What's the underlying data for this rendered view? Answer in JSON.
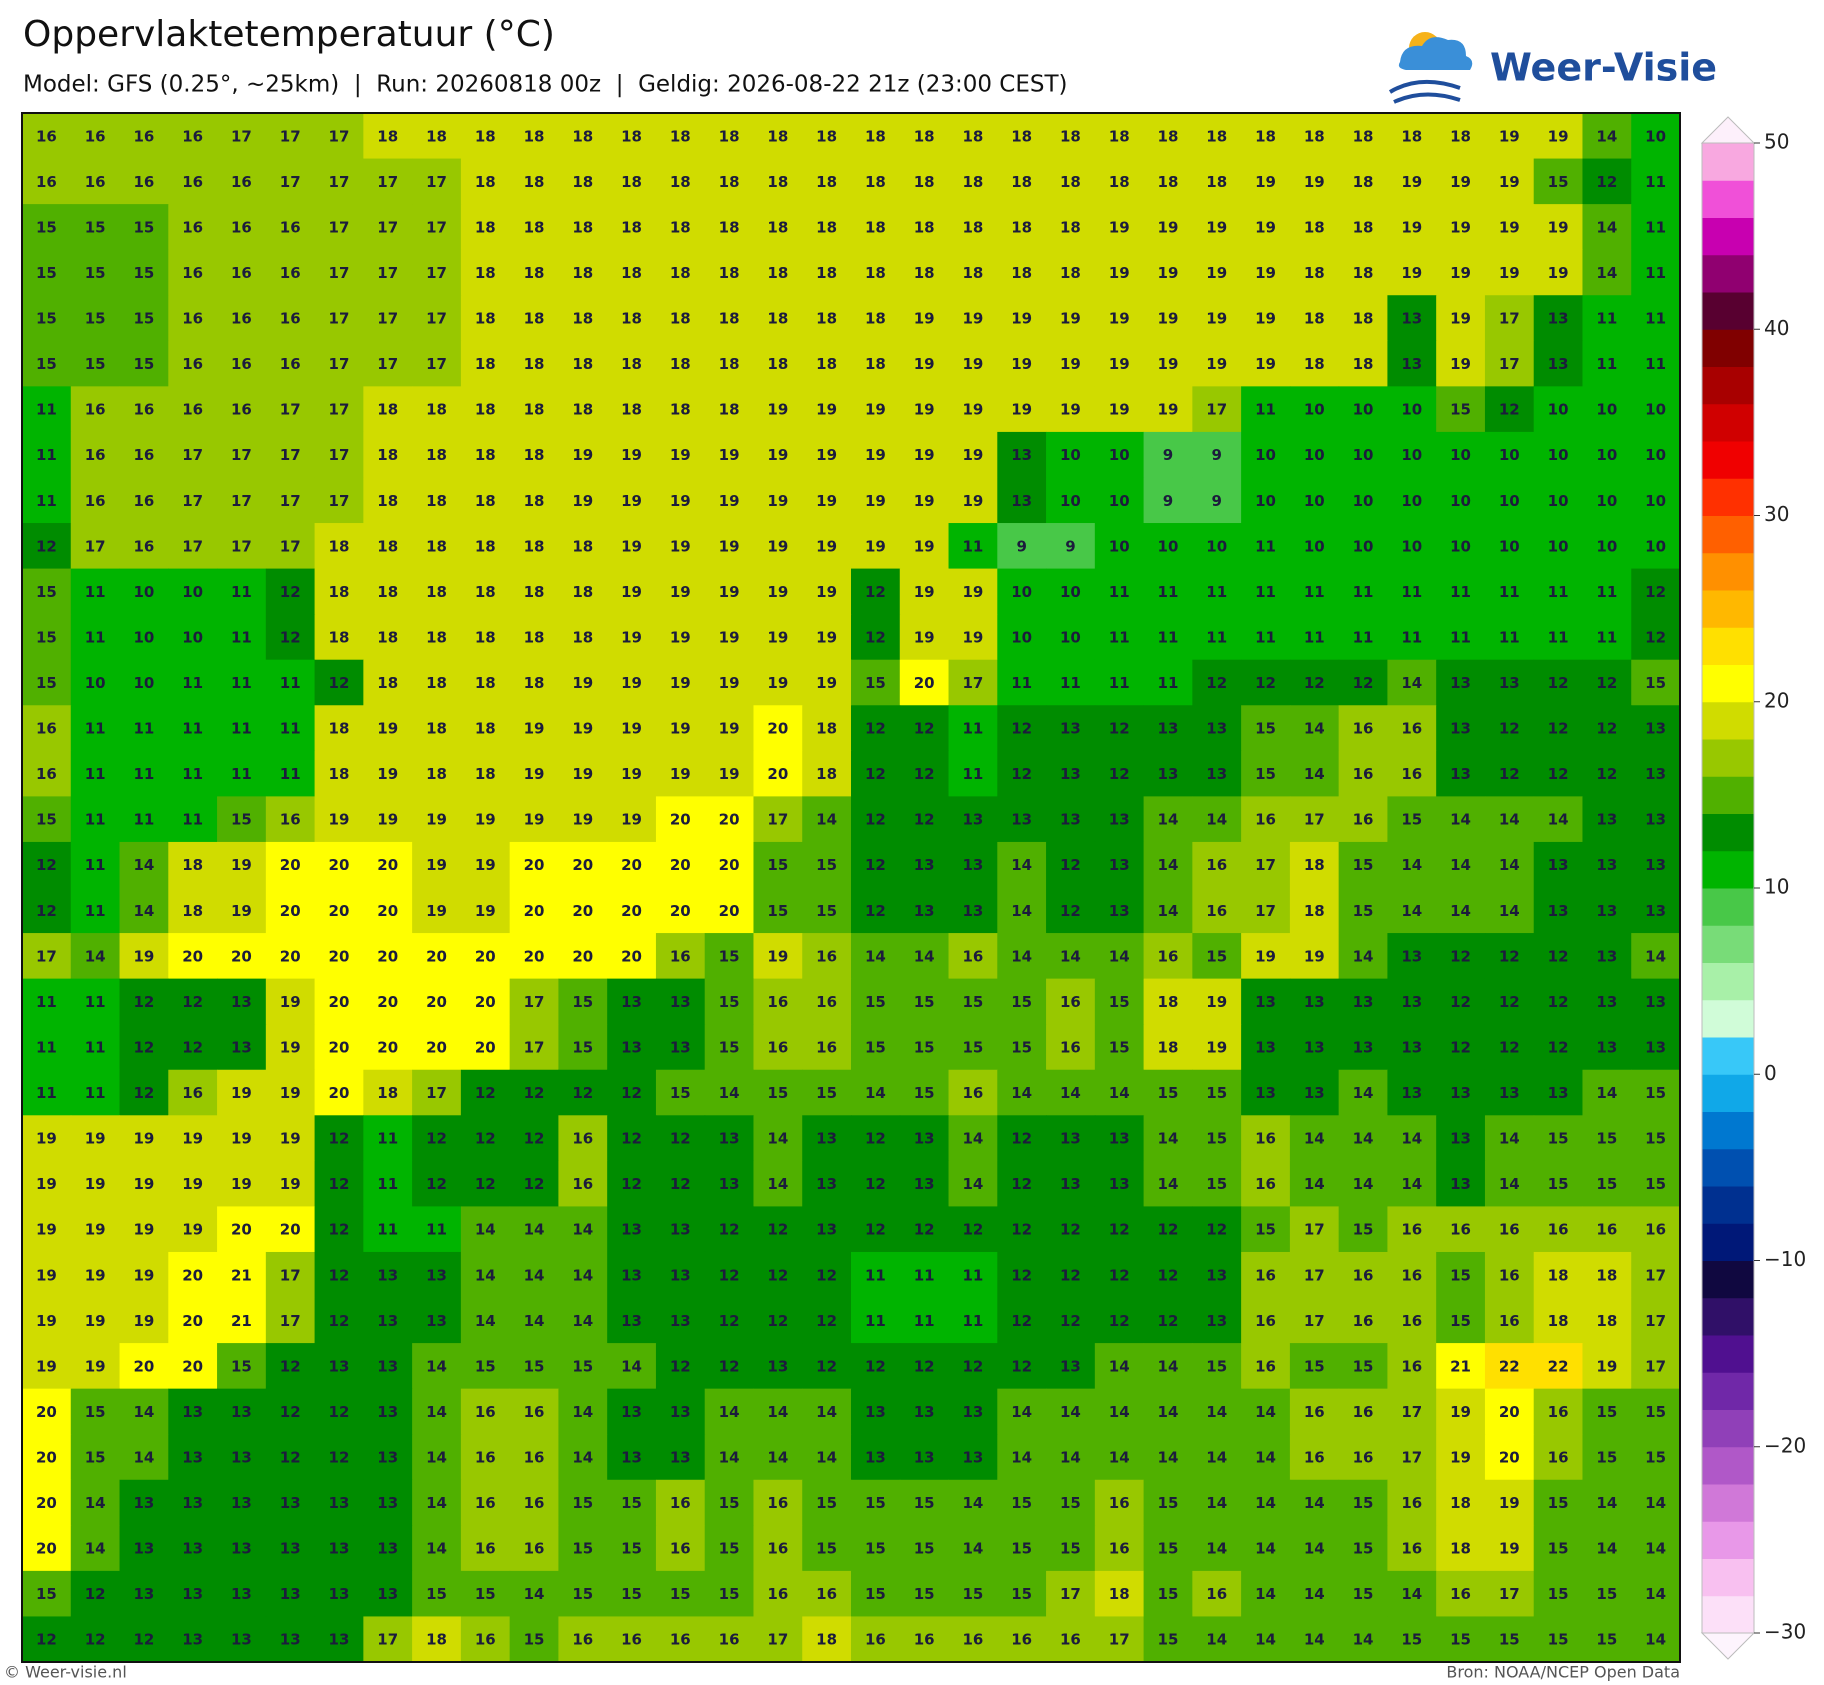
{
  "header": {
    "title": "Oppervlaktetemperatuur (°C)",
    "subtitle": "Model: GFS (0.25°, ~25km)  |  Run: 20260818 00z  |  Geldig: 2026-08-22 21z (23:00 CEST)"
  },
  "logo": {
    "text": "Weer-Visie"
  },
  "map": {
    "rows": [
      [
        16,
        16,
        16,
        16,
        17,
        17,
        17,
        18,
        18,
        18,
        18,
        18,
        18,
        18,
        18,
        18,
        18,
        18,
        18,
        18,
        18,
        18,
        18,
        18,
        18,
        18,
        18,
        18,
        18,
        18,
        19,
        19,
        14,
        10
      ],
      [
        16,
        16,
        16,
        16,
        16,
        17,
        17,
        17,
        17,
        18,
        18,
        18,
        18,
        18,
        18,
        18,
        18,
        18,
        18,
        18,
        18,
        18,
        18,
        18,
        18,
        19,
        19,
        18,
        19,
        19,
        19,
        15,
        12,
        11
      ],
      [
        15,
        15,
        15,
        16,
        16,
        16,
        17,
        17,
        17,
        18,
        18,
        18,
        18,
        18,
        18,
        18,
        18,
        18,
        18,
        18,
        18,
        18,
        19,
        19,
        19,
        19,
        18,
        18,
        19,
        19,
        19,
        19,
        14,
        11
      ],
      [
        15,
        15,
        15,
        16,
        16,
        16,
        17,
        17,
        17,
        18,
        18,
        18,
        18,
        18,
        18,
        18,
        18,
        18,
        18,
        18,
        18,
        18,
        19,
        19,
        19,
        19,
        18,
        18,
        19,
        19,
        19,
        19,
        14,
        11
      ],
      [
        15,
        15,
        15,
        16,
        16,
        16,
        17,
        17,
        17,
        18,
        18,
        18,
        18,
        18,
        18,
        18,
        18,
        18,
        19,
        19,
        19,
        19,
        19,
        19,
        19,
        19,
        18,
        18,
        13,
        19,
        17,
        13,
        11,
        11
      ],
      [
        15,
        15,
        15,
        16,
        16,
        16,
        17,
        17,
        17,
        18,
        18,
        18,
        18,
        18,
        18,
        18,
        18,
        18,
        19,
        19,
        19,
        19,
        19,
        19,
        19,
        19,
        18,
        18,
        13,
        19,
        17,
        13,
        11,
        11
      ],
      [
        11,
        16,
        16,
        16,
        16,
        17,
        17,
        18,
        18,
        18,
        18,
        18,
        18,
        18,
        18,
        19,
        19,
        19,
        19,
        19,
        19,
        19,
        19,
        19,
        17,
        11,
        10,
        10,
        10,
        15,
        12,
        10,
        10,
        10
      ],
      [
        11,
        16,
        16,
        17,
        17,
        17,
        17,
        18,
        18,
        18,
        18,
        19,
        19,
        19,
        19,
        19,
        19,
        19,
        19,
        19,
        13,
        10,
        10,
        9,
        9,
        10,
        10,
        10,
        10,
        10,
        10,
        10,
        10,
        10
      ],
      [
        11,
        16,
        16,
        17,
        17,
        17,
        17,
        18,
        18,
        18,
        18,
        19,
        19,
        19,
        19,
        19,
        19,
        19,
        19,
        19,
        13,
        10,
        10,
        9,
        9,
        10,
        10,
        10,
        10,
        10,
        10,
        10,
        10,
        10
      ],
      [
        12,
        17,
        16,
        17,
        17,
        17,
        18,
        18,
        18,
        18,
        18,
        18,
        19,
        19,
        19,
        19,
        19,
        19,
        19,
        11,
        9,
        9,
        10,
        10,
        10,
        11,
        10,
        10,
        10,
        10,
        10,
        10,
        10,
        10
      ],
      [
        15,
        11,
        10,
        10,
        11,
        12,
        18,
        18,
        18,
        18,
        18,
        18,
        19,
        19,
        19,
        19,
        19,
        12,
        19,
        19,
        10,
        10,
        11,
        11,
        11,
        11,
        11,
        11,
        11,
        11,
        11,
        11,
        11,
        12
      ],
      [
        15,
        11,
        10,
        10,
        11,
        12,
        18,
        18,
        18,
        18,
        18,
        18,
        19,
        19,
        19,
        19,
        19,
        12,
        19,
        19,
        10,
        10,
        11,
        11,
        11,
        11,
        11,
        11,
        11,
        11,
        11,
        11,
        11,
        12
      ],
      [
        15,
        10,
        10,
        11,
        11,
        11,
        12,
        18,
        18,
        18,
        18,
        19,
        19,
        19,
        19,
        19,
        19,
        15,
        20,
        17,
        11,
        11,
        11,
        11,
        12,
        12,
        12,
        12,
        14,
        13,
        13,
        12,
        12,
        15
      ],
      [
        16,
        11,
        11,
        11,
        11,
        11,
        18,
        19,
        18,
        18,
        19,
        19,
        19,
        19,
        19,
        20,
        18,
        12,
        12,
        11,
        12,
        13,
        12,
        13,
        13,
        15,
        14,
        16,
        16,
        13,
        12,
        12,
        12,
        13
      ],
      [
        16,
        11,
        11,
        11,
        11,
        11,
        18,
        19,
        18,
        18,
        19,
        19,
        19,
        19,
        19,
        20,
        18,
        12,
        12,
        11,
        12,
        13,
        12,
        13,
        13,
        15,
        14,
        16,
        16,
        13,
        12,
        12,
        12,
        13
      ],
      [
        15,
        11,
        11,
        11,
        15,
        16,
        19,
        19,
        19,
        19,
        19,
        19,
        19,
        20,
        20,
        17,
        14,
        12,
        12,
        13,
        13,
        13,
        13,
        14,
        14,
        16,
        17,
        16,
        15,
        14,
        14,
        14,
        13,
        13
      ],
      [
        12,
        11,
        14,
        18,
        19,
        20,
        20,
        20,
        19,
        19,
        20,
        20,
        20,
        20,
        20,
        15,
        15,
        12,
        13,
        13,
        14,
        12,
        13,
        14,
        16,
        17,
        18,
        15,
        14,
        14,
        14,
        13,
        13,
        13
      ],
      [
        12,
        11,
        14,
        18,
        19,
        20,
        20,
        20,
        19,
        19,
        20,
        20,
        20,
        20,
        20,
        15,
        15,
        12,
        13,
        13,
        14,
        12,
        13,
        14,
        16,
        17,
        18,
        15,
        14,
        14,
        14,
        13,
        13,
        13
      ],
      [
        17,
        14,
        19,
        20,
        20,
        20,
        20,
        20,
        20,
        20,
        20,
        20,
        20,
        16,
        15,
        19,
        16,
        14,
        14,
        16,
        14,
        14,
        14,
        16,
        15,
        19,
        19,
        14,
        13,
        12,
        12,
        12,
        13,
        14
      ],
      [
        11,
        11,
        12,
        12,
        13,
        19,
        20,
        20,
        20,
        20,
        17,
        15,
        13,
        13,
        15,
        16,
        16,
        15,
        15,
        15,
        15,
        16,
        15,
        18,
        19,
        13,
        13,
        13,
        13,
        12,
        12,
        12,
        13,
        13
      ],
      [
        11,
        11,
        12,
        12,
        13,
        19,
        20,
        20,
        20,
        20,
        17,
        15,
        13,
        13,
        15,
        16,
        16,
        15,
        15,
        15,
        15,
        16,
        15,
        18,
        19,
        13,
        13,
        13,
        13,
        12,
        12,
        12,
        13,
        13
      ],
      [
        11,
        11,
        12,
        16,
        19,
        19,
        20,
        18,
        17,
        12,
        12,
        12,
        12,
        15,
        14,
        15,
        15,
        14,
        15,
        16,
        14,
        14,
        14,
        15,
        15,
        13,
        13,
        14,
        13,
        13,
        13,
        13,
        14,
        15
      ],
      [
        19,
        19,
        19,
        19,
        19,
        19,
        12,
        11,
        12,
        12,
        12,
        16,
        12,
        12,
        13,
        14,
        13,
        12,
        13,
        14,
        12,
        13,
        13,
        14,
        15,
        16,
        14,
        14,
        14,
        13,
        14,
        15,
        15,
        15
      ],
      [
        19,
        19,
        19,
        19,
        19,
        19,
        12,
        11,
        12,
        12,
        12,
        16,
        12,
        12,
        13,
        14,
        13,
        12,
        13,
        14,
        12,
        13,
        13,
        14,
        15,
        16,
        14,
        14,
        14,
        13,
        14,
        15,
        15,
        15
      ],
      [
        19,
        19,
        19,
        19,
        20,
        20,
        12,
        11,
        11,
        14,
        14,
        14,
        13,
        13,
        12,
        12,
        13,
        12,
        12,
        12,
        12,
        12,
        12,
        12,
        12,
        15,
        17,
        15,
        16,
        16,
        16,
        16,
        16,
        16
      ],
      [
        19,
        19,
        19,
        20,
        21,
        17,
        12,
        13,
        13,
        14,
        14,
        14,
        13,
        13,
        12,
        12,
        12,
        11,
        11,
        11,
        12,
        12,
        12,
        12,
        13,
        16,
        17,
        16,
        16,
        15,
        16,
        18,
        18,
        17
      ],
      [
        19,
        19,
        19,
        20,
        21,
        17,
        12,
        13,
        13,
        14,
        14,
        14,
        13,
        13,
        12,
        12,
        12,
        11,
        11,
        11,
        12,
        12,
        12,
        12,
        13,
        16,
        17,
        16,
        16,
        15,
        16,
        18,
        18,
        17
      ],
      [
        19,
        19,
        20,
        20,
        15,
        12,
        13,
        13,
        14,
        15,
        15,
        15,
        14,
        12,
        12,
        13,
        12,
        12,
        12,
        12,
        12,
        13,
        14,
        14,
        15,
        16,
        15,
        15,
        16,
        21,
        22,
        22,
        19,
        17
      ],
      [
        20,
        15,
        14,
        13,
        13,
        12,
        12,
        13,
        14,
        16,
        16,
        14,
        13,
        13,
        14,
        14,
        14,
        13,
        13,
        13,
        14,
        14,
        14,
        14,
        14,
        14,
        16,
        16,
        17,
        19,
        20,
        16,
        15,
        15
      ],
      [
        20,
        15,
        14,
        13,
        13,
        12,
        12,
        13,
        14,
        16,
        16,
        14,
        13,
        13,
        14,
        14,
        14,
        13,
        13,
        13,
        14,
        14,
        14,
        14,
        14,
        14,
        16,
        16,
        17,
        19,
        20,
        16,
        15,
        15
      ],
      [
        20,
        14,
        13,
        13,
        13,
        13,
        13,
        13,
        14,
        16,
        16,
        15,
        15,
        16,
        15,
        16,
        15,
        15,
        15,
        14,
        15,
        15,
        16,
        15,
        14,
        14,
        14,
        15,
        16,
        18,
        19,
        15,
        14,
        14
      ],
      [
        20,
        14,
        13,
        13,
        13,
        13,
        13,
        13,
        14,
        16,
        16,
        15,
        15,
        16,
        15,
        16,
        15,
        15,
        15,
        14,
        15,
        15,
        16,
        15,
        14,
        14,
        14,
        15,
        16,
        18,
        19,
        15,
        14,
        14
      ],
      [
        15,
        12,
        13,
        13,
        13,
        13,
        13,
        13,
        15,
        15,
        14,
        15,
        15,
        15,
        15,
        16,
        16,
        15,
        15,
        15,
        15,
        17,
        18,
        15,
        16,
        14,
        14,
        15,
        14,
        16,
        17,
        15,
        15,
        14
      ],
      [
        12,
        12,
        12,
        13,
        13,
        13,
        13,
        17,
        18,
        16,
        15,
        16,
        16,
        16,
        16,
        17,
        18,
        16,
        16,
        16,
        16,
        16,
        17,
        15,
        14,
        14,
        14,
        14,
        15,
        15,
        15,
        15,
        15,
        14
      ]
    ]
  },
  "colorbar": {
    "ylim": [
      -30,
      50
    ],
    "yticks": [
      50,
      40,
      30,
      20,
      10,
      0,
      {
        "value": -10,
        "label": "−10"
      },
      {
        "value": -20,
        "label": "−20"
      },
      {
        "value": -30,
        "label": "−30"
      }
    ],
    "colors": [
      "#fce0f8",
      "#f8c0f0",
      "#e898e8",
      "#d078d8",
      "#b058c8",
      "#9040b8",
      "#7028a8",
      "#501090",
      "#301068",
      "#100840",
      "#001878",
      "#003090",
      "#0050b0",
      "#0078d0",
      "#10a8e8",
      "#38c8f8",
      "#d0fcd8",
      "#a8f0a8",
      "#78dc78",
      "#48c848",
      "#00b400",
      "#008c00",
      "#50b000",
      "#98c800",
      "#d0dc00",
      "#ffff00",
      "#ffe000",
      "#ffb800",
      "#ff9000",
      "#ff6000",
      "#ff3000",
      "#f00000",
      "#d00000",
      "#a80000",
      "#800000",
      "#580030",
      "#900070",
      "#c800b0",
      "#f050d8",
      "#f8a8e0"
    ]
  },
  "footer": {
    "credit": "© Weer-visie.nl",
    "source": "Bron: NOAA/NCEP Open Data"
  }
}
